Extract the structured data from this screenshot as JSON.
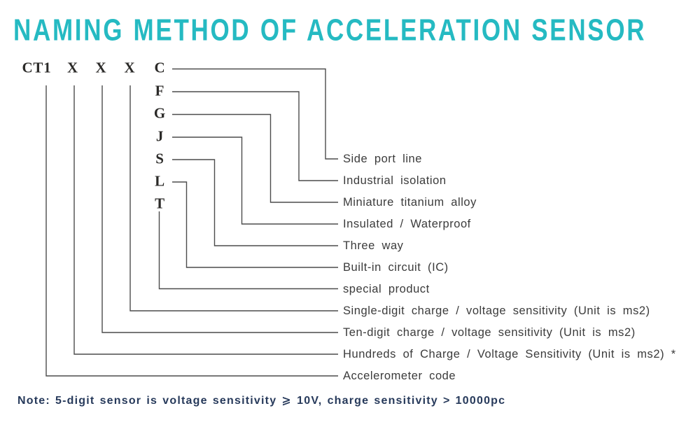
{
  "title": "NAMING METHOD OF ACCELERATION SENSOR",
  "note": "Note: 5-digit sensor is voltage sensitivity ⩾ 10V, charge sensitivity > 10000pc",
  "colors": {
    "background": "#ffffff",
    "title": "#25bac2",
    "note": "#273a5b",
    "line": "#4c4c4c",
    "code_text": "#2b2a28",
    "label_text": "#3b3b3b"
  },
  "code": {
    "prefix": "CT1",
    "placeholders": [
      "X",
      "X",
      "X"
    ],
    "branch_letters": [
      "C",
      "F",
      "G",
      "J",
      "S",
      "L",
      "T"
    ]
  },
  "entries": [
    {
      "symbol": "C",
      "label": "Side port line"
    },
    {
      "symbol": "F",
      "label": "Industrial isolation"
    },
    {
      "symbol": "G",
      "label": "Miniature titanium alloy"
    },
    {
      "symbol": "J",
      "label": "Insulated / Waterproof"
    },
    {
      "symbol": "S",
      "label": "Three way"
    },
    {
      "symbol": "L",
      "label": "Built-in circuit (IC)"
    },
    {
      "symbol": "T",
      "label": "special product"
    },
    {
      "symbol": "X",
      "label": "Single-digit charge / voltage sensitivity (Unit is ms2)"
    },
    {
      "symbol": "X",
      "label": "Ten-digit charge / voltage sensitivity (Unit is ms2)"
    },
    {
      "symbol": "X",
      "label": "Hundreds of Charge / Voltage Sensitivity (Unit is ms2) *"
    },
    {
      "symbol": "CT1",
      "label": "Accelerometer code"
    }
  ]
}
